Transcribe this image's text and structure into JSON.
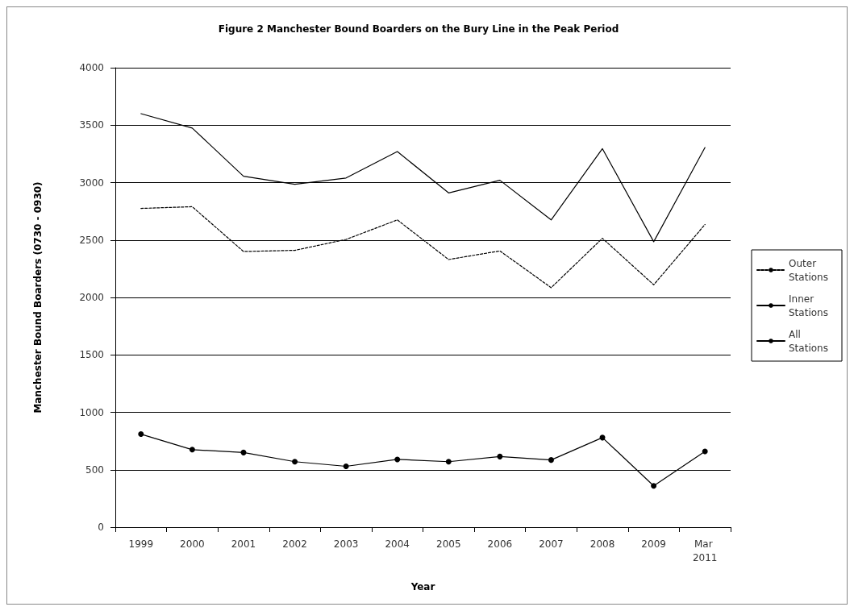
{
  "chart_data": {
    "type": "line",
    "title": "Figure 2 Manchester Bound Boarders on the Bury Line in the Peak Period",
    "xlabel": "Year",
    "ylabel": "Manchester Bound Boarders (0730 - 0930)",
    "categories": [
      "1999",
      "2000",
      "2001",
      "2002",
      "2003",
      "2004",
      "2005",
      "2006",
      "2007",
      "2008",
      "2009",
      "Mar 2011"
    ],
    "series": [
      {
        "name": "Outer Stations",
        "color": "#000000",
        "line_style": "dashed",
        "marker": "none",
        "values": [
          2775,
          2790,
          2400,
          2410,
          2505,
          2675,
          2330,
          2405,
          2085,
          2515,
          2110,
          2635
        ]
      },
      {
        "name": "Inner Stations",
        "color": "#000000",
        "line_style": "solid",
        "marker": "circle",
        "values": [
          810,
          675,
          650,
          570,
          530,
          590,
          570,
          615,
          585,
          780,
          360,
          660
        ]
      },
      {
        "name": "All Stations",
        "color": "#000000",
        "line_style": "solid",
        "marker": "none",
        "values": [
          3600,
          3475,
          3055,
          2985,
          3040,
          3270,
          2910,
          3020,
          2675,
          3295,
          2485,
          3305
        ]
      }
    ],
    "ylim": [
      0,
      4000
    ],
    "yticks": [
      0,
      500,
      1000,
      1500,
      2000,
      2500,
      3000,
      3500,
      4000
    ],
    "grid": "y",
    "legend": "right"
  }
}
